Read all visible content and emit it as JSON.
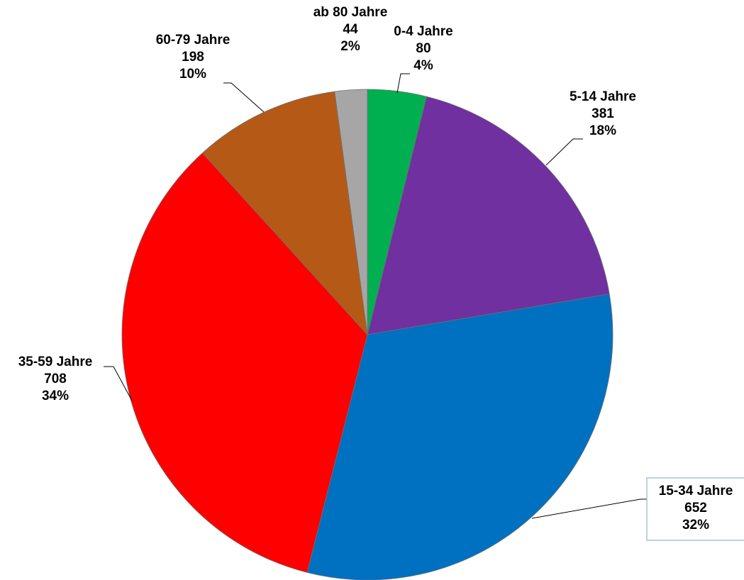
{
  "chart_data": {
    "type": "pie",
    "title": "",
    "legend": "none",
    "start_angle_deg": 0,
    "direction": "clockwise",
    "slices": [
      {
        "label": "0-4 Jahre",
        "value": 80,
        "percent": "4%",
        "color": "#00b050"
      },
      {
        "label": "5-14 Jahre",
        "value": 381,
        "percent": "18%",
        "color": "#7030a0"
      },
      {
        "label": "15-34 Jahre",
        "value": 652,
        "percent": "32%",
        "color": "#0070c0"
      },
      {
        "label": "35-59 Jahre",
        "value": 708,
        "percent": "34%",
        "color": "#ff0000"
      },
      {
        "label": "60-79 Jahre",
        "value": 198,
        "percent": "10%",
        "color": "#b45a16"
      },
      {
        "label": "ab 80 Jahre",
        "value": 44,
        "percent": "2%",
        "color": "#a6a6a6"
      }
    ]
  }
}
